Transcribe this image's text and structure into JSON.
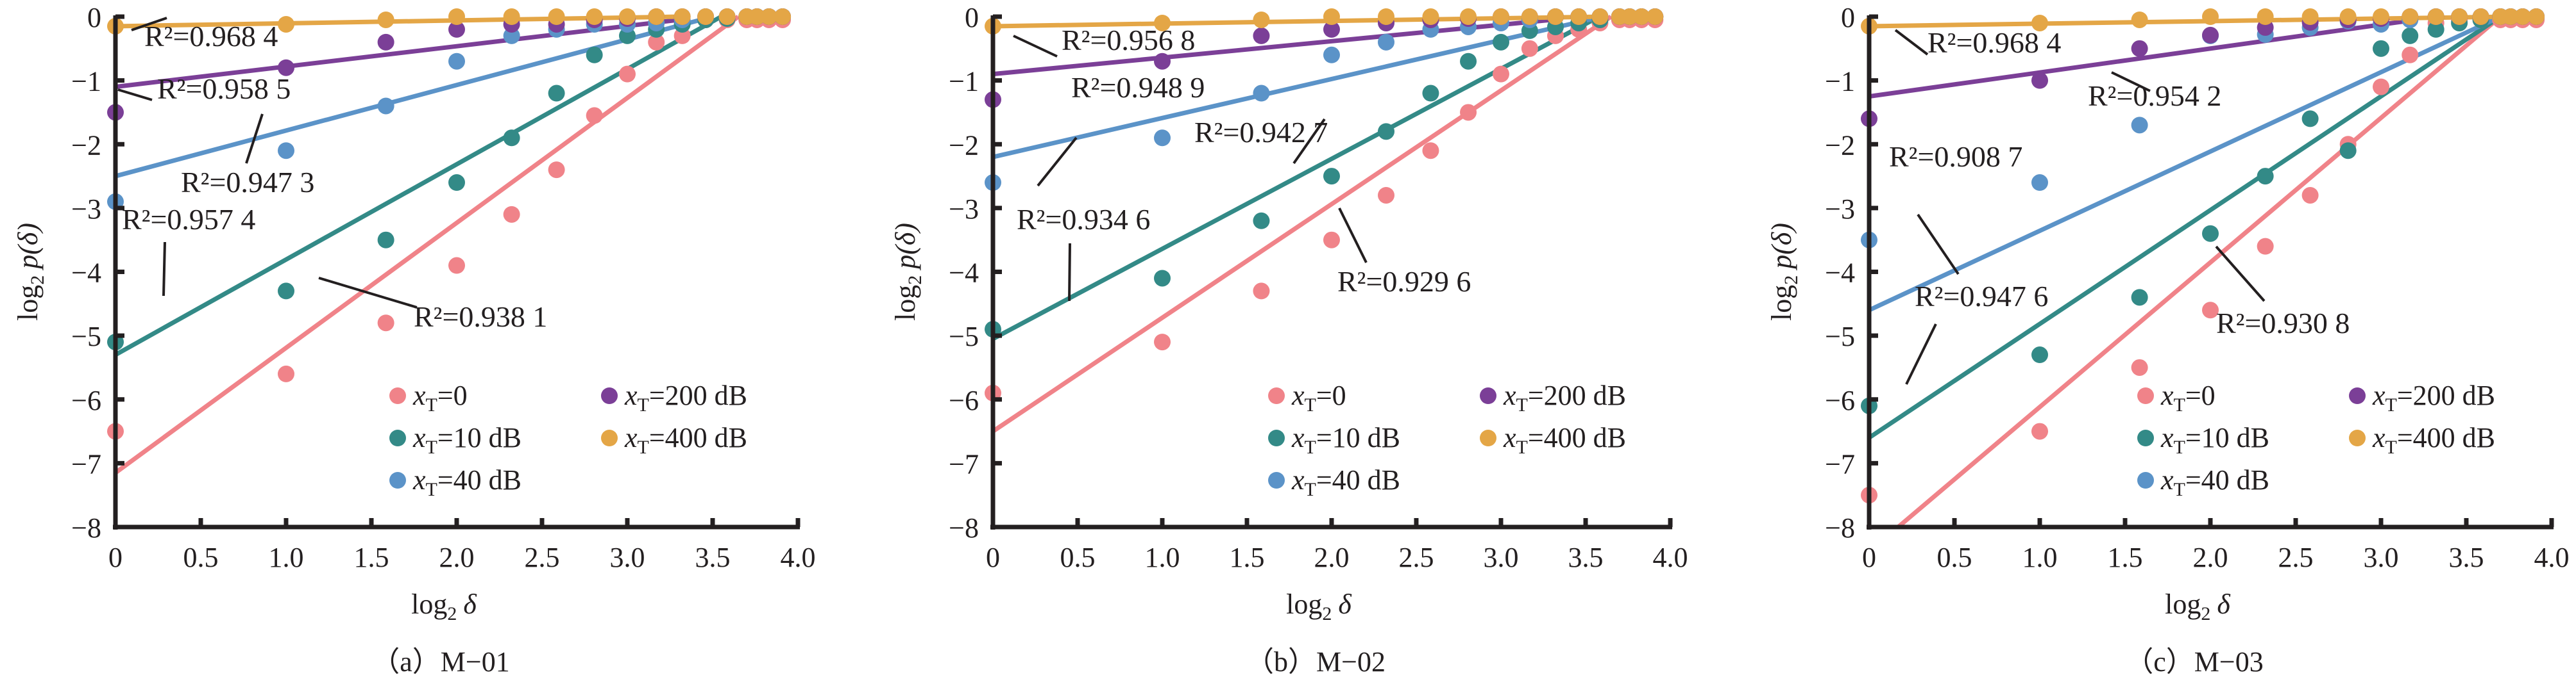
{
  "chart_data": [
    {
      "type": "scatter",
      "panel": "a",
      "caption": "（a）M−01",
      "xlabel_main": "log",
      "xlabel_sub": "2",
      "xlabel_var": "δ",
      "ylabel_main": "log",
      "ylabel_sub": "2",
      "ylabel_var": "p(δ)",
      "xlim": [
        0,
        4.0
      ],
      "ylim": [
        -8,
        0
      ],
      "xticks": [
        "0",
        "0.5",
        "1.0",
        "1.5",
        "2.0",
        "2.5",
        "3.0",
        "3.5",
        "4.0"
      ],
      "yticks": [
        "0",
        "−1",
        "−2",
        "−3",
        "−4",
        "−5",
        "−6",
        "−7",
        "−8"
      ],
      "grid": false,
      "legend_position": "bottom-right",
      "x": [
        0,
        1,
        1.585,
        2,
        2.322,
        2.585,
        2.807,
        3,
        3.17,
        3.322,
        3.459,
        3.585,
        3.7,
        3.76,
        3.83,
        3.91
      ],
      "series": [
        {
          "name": "xT=0",
          "values": [
            -6.5,
            -5.6,
            -4.8,
            -3.9,
            -3.1,
            -2.4,
            -1.55,
            -0.9,
            -0.4,
            -0.3,
            -0.05,
            -0.05,
            -0.05,
            -0.05,
            -0.05,
            -0.05
          ],
          "fit": [
            [
              0,
              -7.15
            ],
            [
              3.65,
              0
            ]
          ],
          "r2": "R²=0.938 1"
        },
        {
          "name": "xT=10 dB",
          "values": [
            -5.1,
            -4.3,
            -3.5,
            -2.6,
            -1.9,
            -1.2,
            -0.6,
            -0.3,
            -0.2,
            -0.12,
            -0.05,
            -0.03,
            0,
            0,
            0,
            0
          ],
          "fit": [
            [
              0,
              -5.3
            ],
            [
              3.55,
              0
            ]
          ],
          "r2": "R²=0.957 4"
        },
        {
          "name": "xT=40 dB",
          "values": [
            -2.9,
            -2.1,
            -1.4,
            -0.7,
            -0.3,
            -0.2,
            -0.12,
            -0.12,
            -0.1,
            -0.05,
            0,
            0,
            0,
            0,
            0,
            0
          ],
          "fit": [
            [
              0,
              -2.5
            ],
            [
              3.5,
              0
            ]
          ],
          "r2": "R²=0.947 3"
        },
        {
          "name": "xT=200 dB",
          "values": [
            -1.5,
            -0.8,
            -0.4,
            -0.2,
            -0.12,
            -0.12,
            -0.05,
            -0.03,
            0,
            0,
            0,
            0,
            0,
            0,
            0,
            0
          ],
          "fit": [
            [
              0,
              -1.1
            ],
            [
              3.3,
              -0.05
            ]
          ],
          "r2": "R²=0.958 5"
        },
        {
          "name": "xT=400 dB",
          "values": [
            -0.15,
            -0.12,
            -0.05,
            0,
            0,
            0,
            0,
            0,
            0,
            0,
            0,
            0,
            0,
            0,
            0,
            0
          ],
          "fit": [
            [
              0,
              -0.15
            ],
            [
              3.3,
              0
            ]
          ],
          "r2": "R²=0.968 4"
        }
      ]
    },
    {
      "type": "scatter",
      "panel": "b",
      "caption": "（b）M−02",
      "xlabel_main": "log",
      "xlabel_sub": "2",
      "xlabel_var": "δ",
      "ylabel_main": "log",
      "ylabel_sub": "2",
      "ylabel_var": "p(δ)",
      "xlim": [
        0,
        4.0
      ],
      "ylim": [
        -8,
        0
      ],
      "xticks": [
        "0",
        "0.5",
        "1.0",
        "1.5",
        "2.0",
        "2.5",
        "3.0",
        "3.5",
        "4.0"
      ],
      "yticks": [
        "0",
        "−1",
        "−2",
        "−3",
        "−4",
        "−5",
        "−6",
        "−7",
        "−8"
      ],
      "grid": false,
      "legend_position": "bottom-right",
      "x": [
        0,
        1,
        1.585,
        2,
        2.322,
        2.585,
        2.807,
        3,
        3.17,
        3.322,
        3.459,
        3.585,
        3.7,
        3.76,
        3.83,
        3.91
      ],
      "series": [
        {
          "name": "xT=0",
          "values": [
            -5.9,
            -5.1,
            -4.3,
            -3.5,
            -2.8,
            -2.1,
            -1.5,
            -0.9,
            -0.5,
            -0.3,
            -0.2,
            -0.1,
            -0.05,
            -0.05,
            -0.05,
            -0.05
          ],
          "fit": [
            [
              0,
              -6.5
            ],
            [
              3.65,
              0
            ]
          ],
          "r2": "R²=0.929 6"
        },
        {
          "name": "xT=10 dB",
          "values": [
            -4.9,
            -4.1,
            -3.2,
            -2.5,
            -1.8,
            -1.2,
            -0.7,
            -0.4,
            -0.22,
            -0.16,
            -0.1,
            -0.05,
            0,
            0,
            0,
            0
          ],
          "fit": [
            [
              0,
              -5.05
            ],
            [
              3.58,
              0
            ]
          ],
          "r2": "R²=0.934 6"
        },
        {
          "name": "xT=40 dB",
          "values": [
            -2.6,
            -1.9,
            -1.2,
            -0.6,
            -0.4,
            -0.2,
            -0.16,
            -0.1,
            -0.05,
            0,
            0,
            0,
            0,
            0,
            0,
            0
          ],
          "fit": [
            [
              0,
              -2.2
            ],
            [
              3.6,
              0
            ]
          ],
          "r2": "R²=0.942 7"
        },
        {
          "name": "xT=200 dB",
          "values": [
            -1.3,
            -0.7,
            -0.3,
            -0.2,
            -0.1,
            -0.05,
            -0.03,
            0,
            0,
            0,
            0,
            0,
            0,
            0,
            0,
            0
          ],
          "fit": [
            [
              0,
              -0.9
            ],
            [
              3.3,
              -0.05
            ]
          ],
          "r2": "R²=0.948 9"
        },
        {
          "name": "xT=400 dB",
          "values": [
            -0.15,
            -0.1,
            -0.05,
            0,
            0,
            0,
            0,
            0,
            0,
            0,
            0,
            0,
            0,
            0,
            0,
            0
          ],
          "fit": [
            [
              0,
              -0.15
            ],
            [
              3.6,
              0
            ]
          ],
          "r2": "R²=0.956 8"
        }
      ]
    },
    {
      "type": "scatter",
      "panel": "c",
      "caption": "（c）M−03",
      "xlabel_main": "log",
      "xlabel_sub": "2",
      "xlabel_var": "δ",
      "ylabel_main": "log",
      "ylabel_sub": "2",
      "ylabel_var": "p(δ)",
      "xlim": [
        0,
        4.0
      ],
      "ylim": [
        -8,
        0
      ],
      "xticks": [
        "0",
        "0.5",
        "1.0",
        "1.5",
        "2.0",
        "2.5",
        "3.0",
        "3.5",
        "4.0"
      ],
      "yticks": [
        "0",
        "−1",
        "−2",
        "−3",
        "−4",
        "−5",
        "−6",
        "−7",
        "−8"
      ],
      "grid": false,
      "legend_position": "bottom-right",
      "x": [
        0,
        1,
        1.585,
        2,
        2.322,
        2.585,
        2.807,
        3,
        3.17,
        3.322,
        3.459,
        3.585,
        3.7,
        3.76,
        3.83,
        3.91
      ],
      "series": [
        {
          "name": "xT=0",
          "values": [
            -7.5,
            -6.5,
            -5.5,
            -4.6,
            -3.6,
            -2.8,
            -2.0,
            -1.1,
            -0.6,
            -0.1,
            -0.05,
            -0.05,
            -0.05,
            -0.05,
            -0.05,
            -0.05
          ],
          "fit": [
            [
              0.17,
              -8
            ],
            [
              3.7,
              0
            ]
          ],
          "r2": "R²=0.930 8"
        },
        {
          "name": "xT=10 dB",
          "values": [
            -6.1,
            -5.3,
            -4.4,
            -3.4,
            -2.5,
            -1.6,
            -2.1,
            -0.5,
            -0.3,
            -0.2,
            -0.1,
            -0.05,
            0,
            0,
            0,
            0
          ],
          "fit": [
            [
              0,
              -6.6
            ],
            [
              3.7,
              0
            ]
          ],
          "r2": "R²=0.947 6"
        },
        {
          "name": "xT=40 dB",
          "values": [
            -3.5,
            -2.6,
            -1.7,
            -0.3,
            -0.28,
            -0.17,
            -0.07,
            -0.12,
            -0.05,
            0,
            0,
            0,
            0,
            0,
            0,
            0
          ],
          "fit": [
            [
              0,
              -4.6
            ],
            [
              3.7,
              0
            ]
          ],
          "r2": "R²=0.908 7"
        },
        {
          "name": "xT=200 dB",
          "values": [
            -1.6,
            -1.0,
            -0.5,
            -0.29,
            -0.17,
            -0.09,
            -0.05,
            -0.03,
            0,
            0,
            0,
            0,
            0,
            0,
            0,
            0
          ],
          "fit": [
            [
              0,
              -1.25
            ],
            [
              3.2,
              -0.05
            ]
          ],
          "r2": "R²=0.954 2"
        },
        {
          "name": "xT=400 dB",
          "values": [
            -0.15,
            -0.1,
            -0.05,
            0,
            0,
            0,
            0,
            0,
            0,
            0,
            0,
            0,
            0,
            0,
            0,
            0
          ],
          "fit": [
            [
              0,
              -0.15
            ],
            [
              3.75,
              0
            ]
          ],
          "r2": "R²=0.968 4"
        }
      ]
    }
  ],
  "legend": {
    "items": [
      {
        "var": "x",
        "sub": "T",
        "rest": "=0"
      },
      {
        "var": "x",
        "sub": "T",
        "rest": "=10 dB"
      },
      {
        "var": "x",
        "sub": "T",
        "rest": "=40 dB"
      },
      {
        "var": "x",
        "sub": "T",
        "rest": "=200 dB"
      },
      {
        "var": "x",
        "sub": "T",
        "rest": "=400 dB"
      }
    ]
  },
  "colors": [
    "#f08389",
    "#338a87",
    "#5b93c8",
    "#7b3f97",
    "#e4a646"
  ],
  "axis_color": "#231f20"
}
